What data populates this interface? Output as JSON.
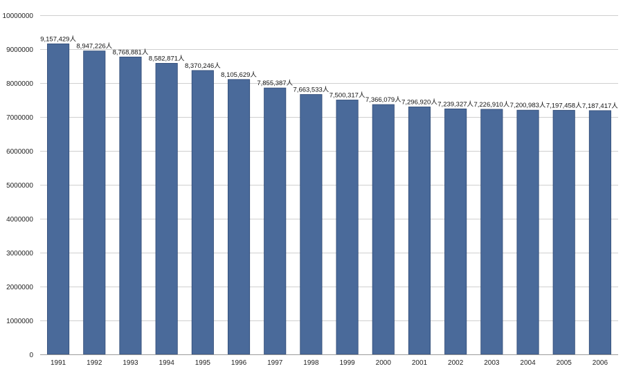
{
  "chart_data": {
    "type": "bar",
    "title": "",
    "xlabel": "",
    "ylabel": "",
    "categories": [
      "1991",
      "1992",
      "1993",
      "1994",
      "1995",
      "1996",
      "1997",
      "1998",
      "1999",
      "2000",
      "2001",
      "2002",
      "2003",
      "2004",
      "2005",
      "2006"
    ],
    "values": [
      9157429,
      8947226,
      8768881,
      8582871,
      8370246,
      8105629,
      7855387,
      7663533,
      7500317,
      7366079,
      7296920,
      7239327,
      7226910,
      7200983,
      7197458,
      7187417
    ],
    "data_labels": [
      "9,157,429人",
      "8,947,226人",
      "8,768,881人",
      "8,582,871人",
      "8,370,246人",
      "8,105,629人",
      "7,855,387人",
      "7,663,533人",
      "7,500,317人",
      "7,366,079人",
      "7,296,920人",
      "7,239,327人",
      "7,226,910人",
      "7,200,983人",
      "7,197,458人",
      "7,187,417人"
    ],
    "ylim": [
      0,
      10000000
    ],
    "yticks": [
      "0",
      "1000000",
      "2000000",
      "3000000",
      "4000000",
      "5000000",
      "6000000",
      "7000000",
      "8000000",
      "9000000",
      "10000000"
    ],
    "grid": true,
    "legend": "none",
    "bar_color": "#4a6a9a",
    "bar_edge_color": "#2f4a75"
  }
}
